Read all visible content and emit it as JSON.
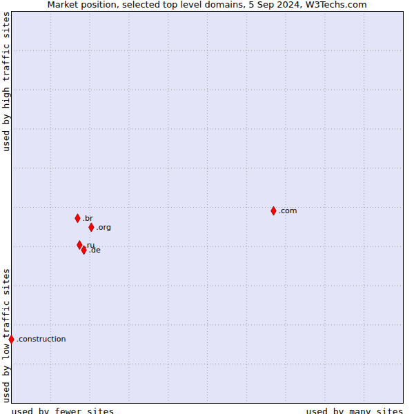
{
  "chart_data": {
    "type": "scatter",
    "title": "Market position, selected top level domains, 5 Sep 2024, W3Techs.com",
    "xlabel": [
      "used by fewer sites",
      "used by many sites"
    ],
    "ylabel": [
      "used by low traffic sites",
      "used by high traffic sites"
    ],
    "points": [
      {
        "label": ".com",
        "x": 6.69,
        "y": 4.91
      },
      {
        "label": ".br",
        "x": 1.69,
        "y": 4.72
      },
      {
        "label": ".org",
        "x": 2.04,
        "y": 4.49
      },
      {
        "label": ".ru",
        "x": 1.74,
        "y": 4.04
      },
      {
        "label": ".de",
        "x": 1.85,
        "y": 3.91
      },
      {
        "label": ".construction",
        "x": 0,
        "y": 1.63
      }
    ],
    "xlim": [
      0,
      10
    ],
    "ylim": [
      0,
      10
    ],
    "xticks": [
      0,
      1,
      2,
      3,
      4,
      5,
      6,
      7,
      8,
      9,
      10
    ],
    "yticks": [
      0,
      1,
      2,
      3,
      4,
      5,
      6,
      7,
      8,
      9,
      10
    ],
    "grid": true,
    "tick_labels": false,
    "color": "#ff0000",
    "marker": "diamond"
  }
}
